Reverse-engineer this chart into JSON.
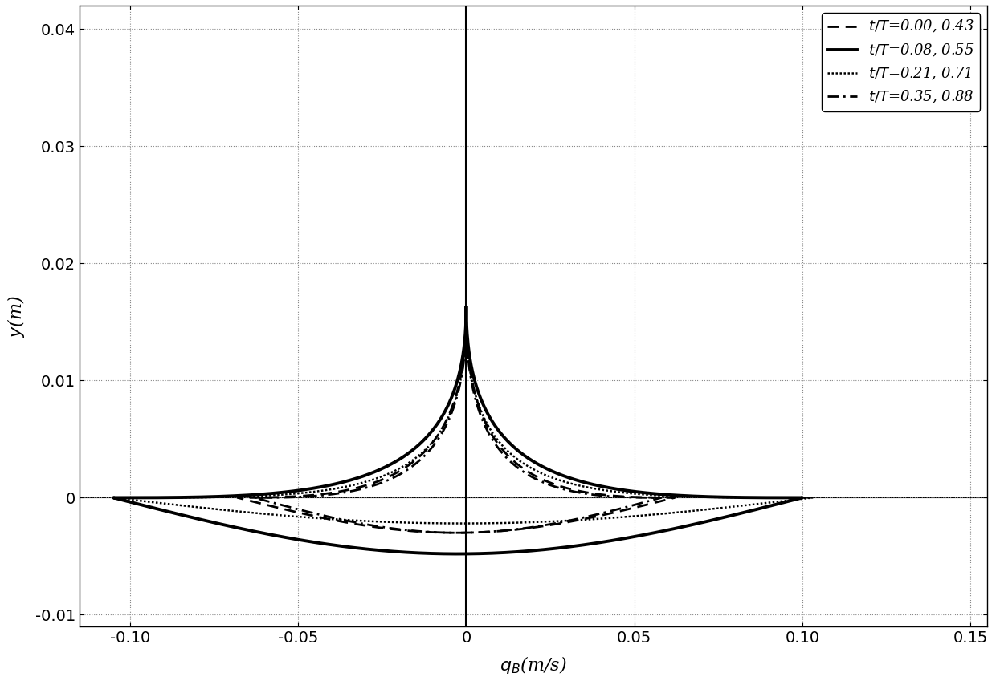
{
  "xlim": [
    -0.115,
    0.155
  ],
  "ylim": [
    -0.011,
    0.042
  ],
  "xticks": [
    -0.1,
    -0.05,
    0.0,
    0.05,
    0.1,
    0.15
  ],
  "yticks": [
    -0.01,
    0.0,
    0.01,
    0.02,
    0.03,
    0.04
  ],
  "xlabel": "$q_B$(m/s)",
  "ylabel": "$y$(m)",
  "curves": [
    {
      "label": "$t/T$=0.00, 0.43",
      "linestyle": "dashed",
      "linewidth": 2.0,
      "qmax_r": 0.062,
      "qmax_l": -0.068,
      "ymax": 0.0158,
      "ymin": -0.003,
      "power_upper": 2.5,
      "power_lower": 0.6
    },
    {
      "label": "$t/T$=0.08, 0.55",
      "linestyle": "solid",
      "linewidth": 2.8,
      "qmax_r": 0.1,
      "qmax_l": -0.105,
      "ymax": 0.0162,
      "ymin": -0.0048,
      "power_upper": 2.8,
      "power_lower": 0.55
    },
    {
      "label": "$t/T$=0.21, 0.71",
      "linestyle": "dotted",
      "linewidth": 1.8,
      "qmax_r": 0.103,
      "qmax_l": -0.105,
      "ymax": 0.0155,
      "ymin": -0.0022,
      "power_upper": 3.2,
      "power_lower": 0.5
    },
    {
      "label": "$t/T$=0.35, 0.88",
      "linestyle": "dashdot",
      "linewidth": 2.0,
      "qmax_r": 0.058,
      "qmax_l": -0.063,
      "ymax": 0.0155,
      "ymin": -0.003,
      "power_upper": 2.5,
      "power_lower": 0.6
    }
  ],
  "legend_loc": "upper right",
  "figsize": [
    12.4,
    8.49
  ],
  "dpi": 100
}
